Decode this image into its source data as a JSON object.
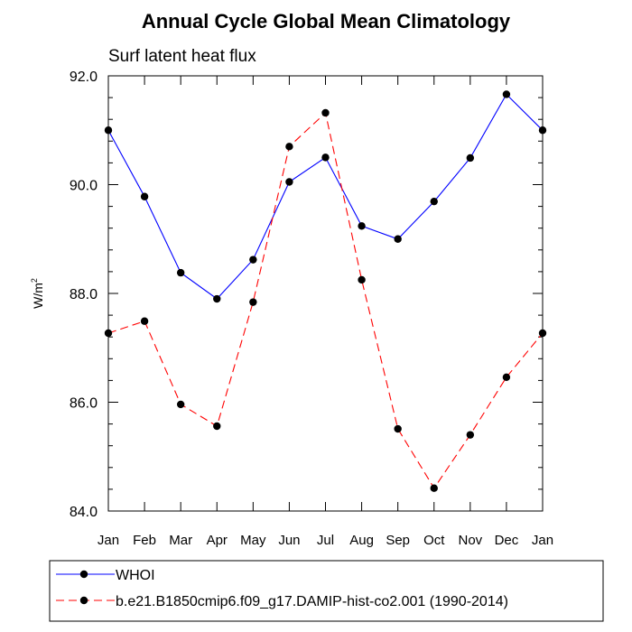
{
  "chart_data": {
    "type": "line",
    "title": "Annual Cycle Global Mean Climatology",
    "subtitle": "Surf latent heat flux",
    "ylabel_base": "W/m",
    "ylabel_sup": "2",
    "xlabel": "",
    "categories": [
      "Jan",
      "Feb",
      "Mar",
      "Apr",
      "May",
      "Jun",
      "Jul",
      "Aug",
      "Sep",
      "Oct",
      "Nov",
      "Dec",
      "Jan"
    ],
    "yticks": [
      "84.0",
      "86.0",
      "88.0",
      "90.0",
      "92.0"
    ],
    "ylim": [
      84.0,
      92.0
    ],
    "grid": false,
    "legend_position": "bottom",
    "series": [
      {
        "name": "WHOI",
        "color": "#0000ff",
        "dash": "solid",
        "values": [
          91.0,
          89.78,
          88.38,
          87.9,
          88.62,
          90.05,
          90.5,
          89.24,
          89.0,
          89.69,
          90.49,
          91.66,
          91.0
        ]
      },
      {
        "name": "b.e21.B1850cmip6.f09_g17.DAMIP-hist-co2.001 (1990-2014)",
        "color": "#ff0000",
        "dash": "dashed",
        "values": [
          87.27,
          87.49,
          85.96,
          85.56,
          87.84,
          90.7,
          91.32,
          88.25,
          85.51,
          84.42,
          85.4,
          86.46,
          87.27
        ]
      }
    ]
  }
}
